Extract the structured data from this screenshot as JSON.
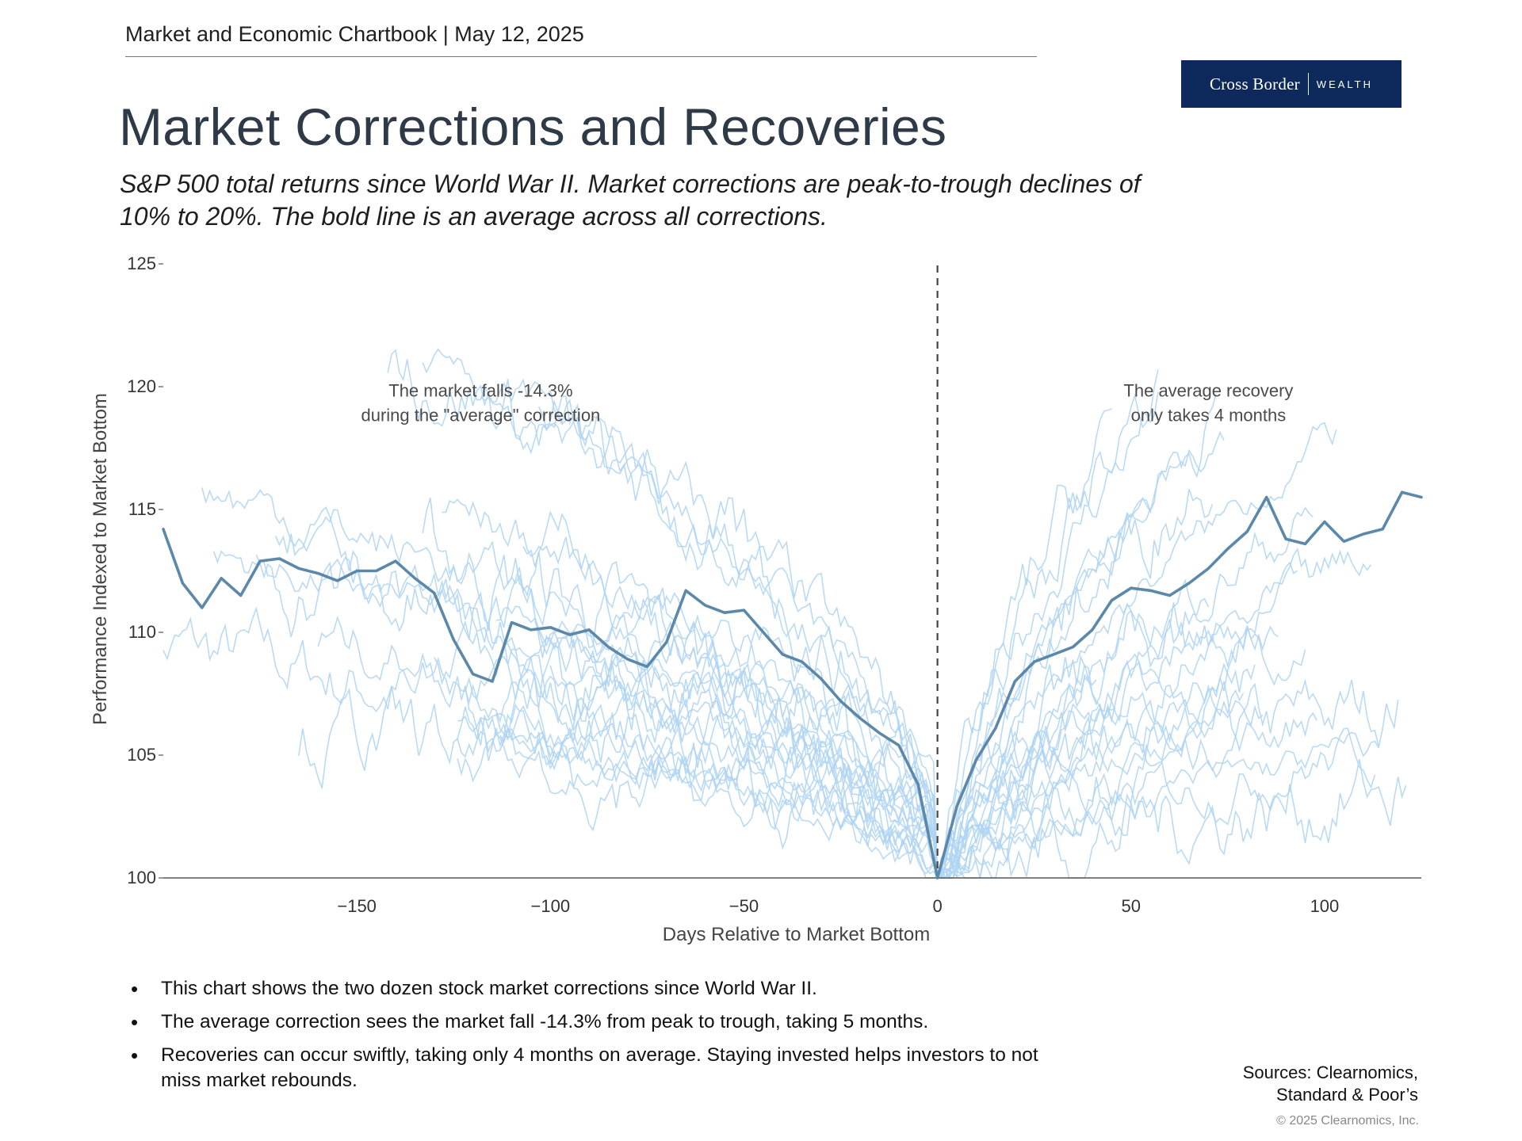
{
  "header": {
    "chartbook": "Market and Economic Chartbook | May 12, 2025"
  },
  "logo": {
    "main": "Cross Border",
    "sub": "WEALTH"
  },
  "title": "Market Corrections and Recoveries",
  "subtitle": "S&P 500 total returns since World War II. Market corrections are peak-to-trough declines of 10% to 20%. The bold line is an average across all corrections.",
  "colors": {
    "thin_lines": "#aed4f2",
    "average_line": "#5c88aa",
    "title": "#2f3a48",
    "logo_bg": "#0e2a5c"
  },
  "chart_data": {
    "type": "line",
    "xlabel": "Days Relative to Market Bottom",
    "ylabel": "Performance Indexed to Market Bottom",
    "xlim": [
      -200,
      125
    ],
    "ylim": [
      100,
      125
    ],
    "x_ticks": [
      "−150",
      "−100",
      "−50",
      "0",
      "50",
      "100"
    ],
    "x_tick_values": [
      -150,
      -100,
      -50,
      0,
      50,
      100
    ],
    "y_ticks": [
      "100",
      "105",
      "110",
      "115",
      "120",
      "125"
    ],
    "y_tick_values": [
      100,
      105,
      110,
      115,
      120,
      125
    ],
    "vertical_marker_x": 0,
    "annotations": [
      {
        "text": [
          "The market falls -14.3%",
          "during the \"average\" correction"
        ],
        "x": -118,
        "y": 119.6
      },
      {
        "text": [
          "The average recovery",
          "only takes 4 months"
        ],
        "x": 70,
        "y": 119.6
      }
    ],
    "average_series": {
      "name": "Average",
      "x": [
        -200,
        -195,
        -190,
        -185,
        -180,
        -175,
        -170,
        -165,
        -160,
        -155,
        -150,
        -145,
        -140,
        -135,
        -130,
        -125,
        -120,
        -115,
        -110,
        -105,
        -100,
        -95,
        -90,
        -85,
        -80,
        -75,
        -70,
        -65,
        -60,
        -55,
        -50,
        -45,
        -40,
        -35,
        -30,
        -25,
        -20,
        -15,
        -10,
        -5,
        0,
        5,
        10,
        15,
        20,
        25,
        30,
        35,
        40,
        45,
        50,
        55,
        60,
        65,
        70,
        75,
        80,
        85,
        90,
        95,
        100,
        105,
        110,
        115,
        120,
        125
      ],
      "y": [
        114.2,
        112.0,
        111.0,
        112.2,
        111.5,
        112.9,
        113.0,
        112.6,
        112.4,
        112.1,
        112.5,
        112.5,
        112.9,
        112.2,
        111.6,
        109.7,
        108.3,
        108.0,
        110.4,
        110.1,
        110.2,
        109.9,
        110.1,
        109.4,
        108.9,
        108.6,
        109.6,
        111.7,
        111.1,
        110.8,
        110.9,
        110.0,
        109.1,
        108.8,
        108.1,
        107.2,
        106.5,
        105.9,
        105.4,
        103.8,
        100.0,
        102.9,
        104.8,
        106.1,
        108.0,
        108.8,
        109.1,
        109.4,
        110.1,
        111.3,
        111.8,
        111.7,
        111.5,
        112.0,
        112.6,
        113.4,
        114.1,
        115.5,
        113.8,
        113.6,
        114.5,
        113.7,
        114.0,
        114.2,
        115.7,
        115.5
      ]
    },
    "notes": "Thin lines: approximately two dozen individual corrections (S&P 500 total returns indexed to the market bottom), rendered as faint light-blue lines."
  },
  "bullets": [
    "This chart shows the two dozen stock market corrections since World War II.",
    "The average correction sees the market fall -14.3% from peak to trough, taking 5 months.",
    "Recoveries can occur swiftly, taking only 4 months on average. Staying invested helps investors to not miss market rebounds."
  ],
  "sources": [
    "Sources: Clearnomics,",
    "Standard & Poor’s"
  ],
  "copyright": "© 2025 Clearnomics, Inc."
}
